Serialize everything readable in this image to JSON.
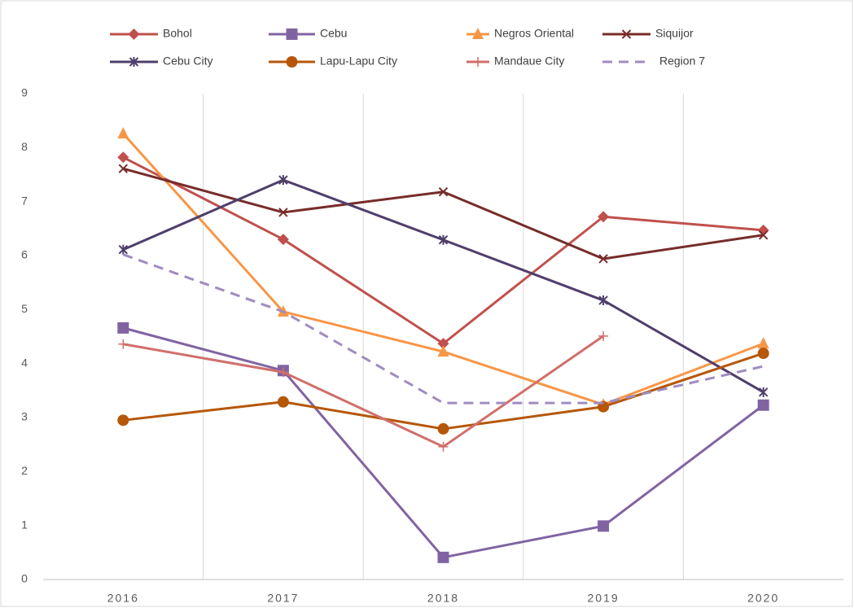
{
  "chart_data": {
    "type": "line",
    "categories": [
      "2016",
      "2017",
      "2018",
      "2019",
      "2020"
    ],
    "ylim": [
      0,
      9
    ],
    "yticks": [
      0,
      1,
      2,
      3,
      4,
      5,
      6,
      7,
      8,
      9
    ],
    "series": [
      {
        "name": "Bohol",
        "color": "#c0504d",
        "marker": "diamond",
        "values": [
          7.82,
          6.3,
          4.37,
          6.72,
          6.47
        ]
      },
      {
        "name": "Cebu",
        "color": "#8064a2",
        "marker": "square",
        "values": [
          4.66,
          3.87,
          0.41,
          0.99,
          3.23
        ]
      },
      {
        "name": "Negros Oriental",
        "color": "#f79646",
        "marker": "triangle",
        "values": [
          8.26,
          4.96,
          4.22,
          3.24,
          4.37
        ]
      },
      {
        "name": "Siquijor",
        "color": "#772c2a",
        "marker": "x",
        "values": [
          7.61,
          6.8,
          7.18,
          5.94,
          6.38
        ]
      },
      {
        "name": "Cebu City",
        "color": "#4f3f6b",
        "marker": "asterisk",
        "values": [
          6.11,
          7.4,
          6.29,
          5.17,
          3.47
        ]
      },
      {
        "name": "Lapu-Lapu City",
        "color": "#b65708",
        "marker": "circle",
        "values": [
          2.95,
          3.29,
          2.79,
          3.2,
          4.19
        ]
      },
      {
        "name": "Mandaue City",
        "color": "#d06f6b",
        "marker": "plus",
        "values": [
          4.36,
          3.84,
          2.46,
          4.51,
          null
        ]
      },
      {
        "name": "Region 7",
        "color": "#a08cc0",
        "marker": "none",
        "dash": true,
        "values": [
          6.02,
          4.96,
          3.27,
          3.27,
          3.95
        ]
      }
    ]
  }
}
